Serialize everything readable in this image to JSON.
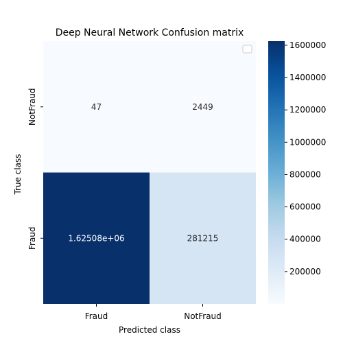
{
  "chart_data": {
    "type": "heatmap",
    "title": "Deep Neural Network Confusion matrix",
    "xlabel": "Predicted class",
    "ylabel": "True class",
    "x_categories": [
      "Fraud",
      "NotFraud"
    ],
    "y_categories": [
      "NotFraud",
      "Fraud"
    ],
    "cells": [
      {
        "row": "NotFraud",
        "col": "Fraud",
        "value": 47,
        "label": "47"
      },
      {
        "row": "NotFraud",
        "col": "NotFraud",
        "value": 2449,
        "label": "2449"
      },
      {
        "row": "Fraud",
        "col": "Fraud",
        "value": 1625080,
        "label": "1.62508e+06"
      },
      {
        "row": "Fraud",
        "col": "NotFraud",
        "value": 281215,
        "label": "281215"
      }
    ],
    "colorbar": {
      "colormap": "Blues",
      "range": [
        47,
        1625080
      ],
      "ticks": [
        200000,
        400000,
        600000,
        800000,
        1000000,
        1200000,
        1400000,
        1600000
      ],
      "tick_labels": [
        "200000",
        "400000",
        "600000",
        "800000",
        "1000000",
        "1200000",
        "1400000",
        "1600000"
      ]
    },
    "legend": {
      "placement": "top-right",
      "entries": []
    }
  }
}
